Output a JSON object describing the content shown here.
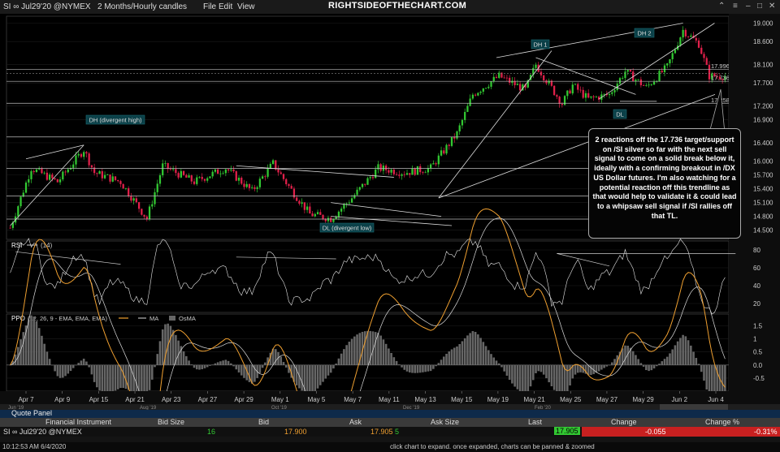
{
  "titlebar": {
    "symbol": "SI ∞ Jul29'20 @NYMEX",
    "timeframe": "2 Months/Hourly candles",
    "menu": [
      "File",
      "Edit",
      "View"
    ],
    "watermark": "RIGHTSIDEOFTHECHART.COM"
  },
  "annotations": {
    "dh1": "DH 1",
    "dh2": "DH 2",
    "dl": "DL",
    "dh_divergent": "DH (divergent high)",
    "dl_divergent": "DL (divergent low)",
    "callout": "2 reactions off the 17.736 target/support on /SI silver so far with the next sell signal to come on a solid break below it, ideally with a confirming breakout in /DX US Dollar futures. I'm also watching for a potential reaction off this trendline as that would help to validate it & could lead to a whipsaw sell signal if /SI rallies off that TL."
  },
  "chart_data": [
    {
      "type": "candlestick",
      "name": "price",
      "yaxis_ticks": [
        19.0,
        18.6,
        18.1,
        17.7,
        17.2,
        16.9,
        16.4,
        16.0,
        15.7,
        15.4,
        15.1,
        14.8,
        14.5
      ],
      "yaxis_tick_labels": [
        "19.000",
        "18.600",
        "18.100",
        "17.700",
        "17.200",
        "16.900",
        "16.400",
        "16.000",
        "15.700",
        "15.400",
        "15.100",
        "14.800",
        "14.500"
      ],
      "ylim": [
        14.3,
        19.15
      ],
      "horizontal_levels": [
        {
          "value": 17.996,
          "label": "17.996"
        },
        {
          "value": 17.736,
          "label": "17.736"
        },
        {
          "value": 17.258,
          "label": "17.258"
        },
        {
          "value": 16.526,
          "label": ".526"
        },
        {
          "value": 15.841,
          "label": "841"
        },
        {
          "value": 15.243,
          "label": "243"
        },
        {
          "value": 14.741,
          "label": "741"
        }
      ],
      "last_price": {
        "value": 17.905,
        "label": "17.905"
      },
      "x_labels": [
        "Apr 7",
        "Apr 9",
        "Apr 15",
        "Apr 21",
        "Apr 23",
        "Apr 27",
        "Apr 29",
        "May 1",
        "May 5",
        "May 7",
        "May 11",
        "May 13",
        "May 15",
        "May 19",
        "May 21",
        "May 25",
        "May 27",
        "May 29",
        "Jun 2",
        "Jun 4"
      ],
      "overview_labels": [
        "Jun '19",
        "Aug '19",
        "Oct '19",
        "Dec '19",
        "Feb '20",
        "Apr '20"
      ],
      "path": [
        [
          0,
          14.55
        ],
        [
          8,
          15.85
        ],
        [
          18,
          15.55
        ],
        [
          28,
          16.25
        ],
        [
          32,
          15.75
        ],
        [
          42,
          15.55
        ],
        [
          52,
          14.75
        ],
        [
          58,
          15.9
        ],
        [
          70,
          15.55
        ],
        [
          82,
          15.85
        ],
        [
          92,
          15.35
        ],
        [
          100,
          15.95
        ],
        [
          106,
          15.45
        ],
        [
          114,
          14.85
        ],
        [
          122,
          14.75
        ],
        [
          130,
          15.2
        ],
        [
          140,
          15.85
        ],
        [
          150,
          15.75
        ],
        [
          160,
          15.85
        ],
        [
          170,
          16.6
        ],
        [
          176,
          17.45
        ],
        [
          186,
          17.85
        ],
        [
          196,
          17.55
        ],
        [
          200,
          18.1
        ],
        [
          210,
          17.25
        ],
        [
          214,
          17.65
        ],
        [
          220,
          17.35
        ],
        [
          228,
          17.45
        ],
        [
          234,
          17.95
        ],
        [
          242,
          17.6
        ],
        [
          250,
          18.05
        ],
        [
          256,
          18.85
        ],
        [
          262,
          18.55
        ],
        [
          266,
          17.85
        ],
        [
          272,
          17.85
        ]
      ]
    },
    {
      "type": "line",
      "name": "RSI",
      "label": "RSI",
      "period_label": "(14)",
      "yaxis_ticks": [
        20,
        40,
        60,
        80
      ],
      "ylim": [
        10,
        90
      ]
    },
    {
      "type": "line",
      "name": "PPO",
      "label": "PPO",
      "params_label": "(12, 26, 9 - EMA, EMA, EMA)",
      "legend": [
        "MA",
        "OsMA"
      ],
      "yaxis_ticks": [
        1.5,
        1.0,
        0.5,
        0.0,
        -0.5
      ],
      "yaxis_tick_labels": [
        "1.5",
        "1",
        "0.5",
        "0.0",
        "-0.5"
      ],
      "ylim": [
        -1.0,
        1.95
      ],
      "colors": {
        "ppo": "#f0a030",
        "ma": "#dddddd",
        "osma": "#666666"
      }
    }
  ],
  "quote_panel": {
    "title": "Quote Panel",
    "columns": [
      "Financial Instrument",
      "Bid Size",
      "Bid",
      "Ask",
      "Ask Size",
      "Last",
      "Change",
      "Change %"
    ],
    "row": {
      "instrument": "SI ∞ Jul29'20 @NYMEX",
      "bid_size": "16",
      "bid": "17.900",
      "ask": "17.905",
      "ask_size": "5",
      "last": "17.905",
      "change": "-0.055",
      "change_pct": "-0.31%"
    }
  },
  "statusbar": {
    "time": "10:12:53 AM 6/4/2020",
    "hint": "click chart to expand. once expanded, charts can be panned & zoomed"
  },
  "colors": {
    "up": "#32c832",
    "down": "#e0204a",
    "change_bg": "#c82020",
    "bid_text": "#f0a030",
    "bidsize_text": "#32c832"
  }
}
